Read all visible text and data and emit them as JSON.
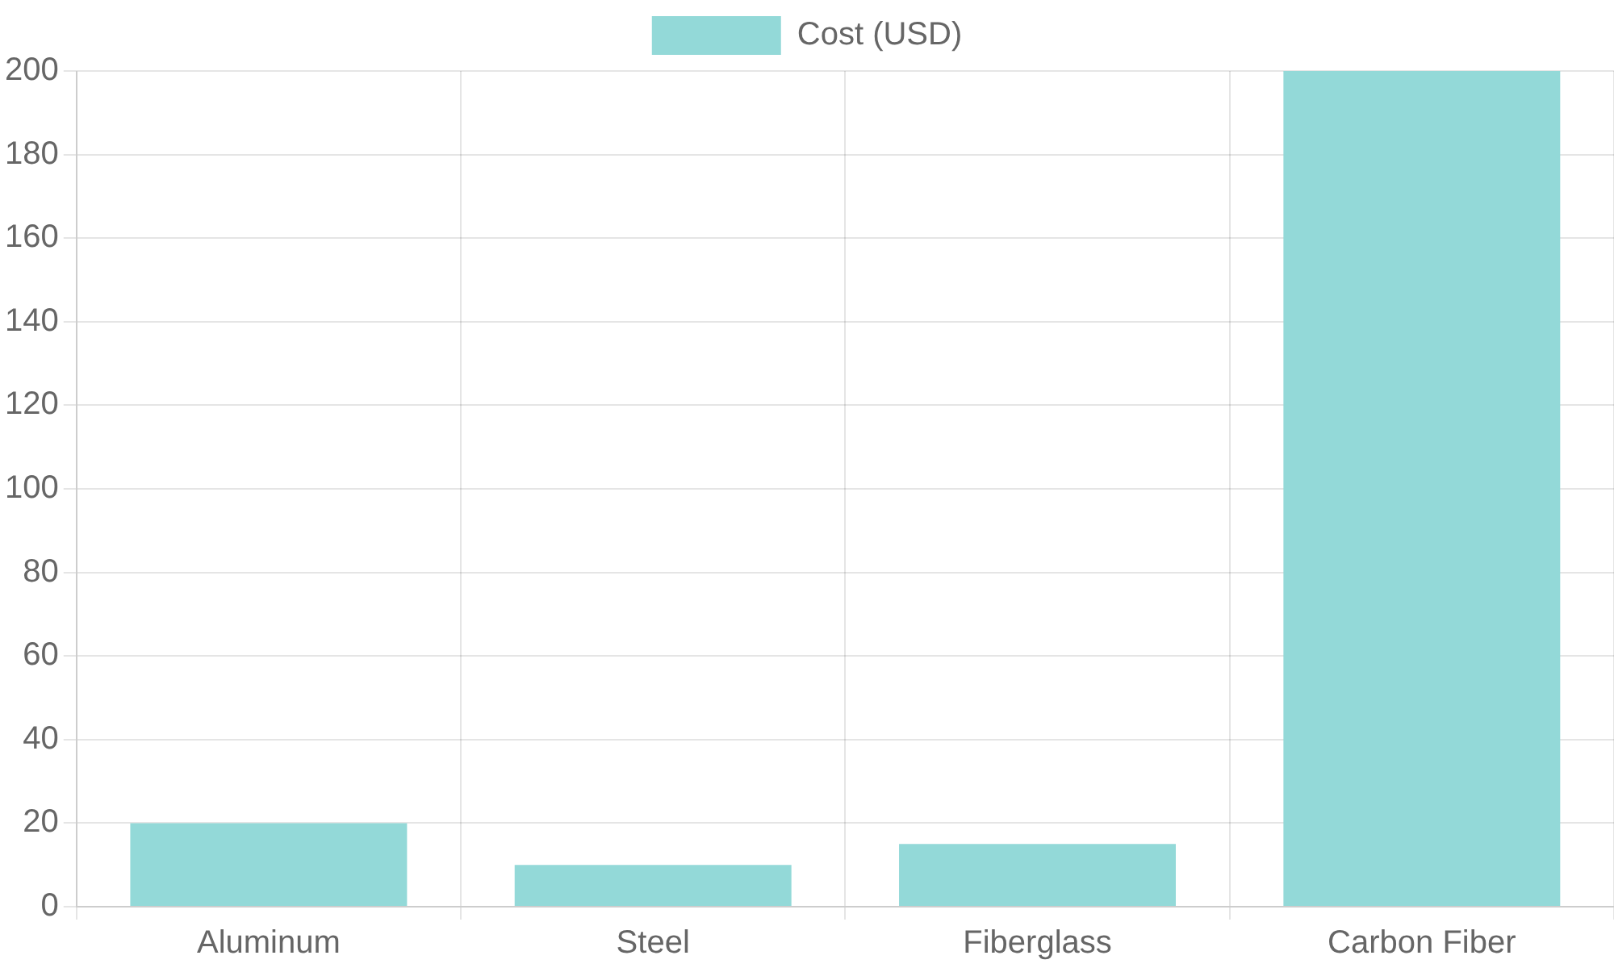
{
  "chart_data": {
    "type": "bar",
    "categories": [
      "Aluminum",
      "Steel",
      "Fiberglass",
      "Carbon Fiber"
    ],
    "series": [
      {
        "name": "Cost (USD)",
        "color": "#93d9d8",
        "values": [
          20,
          10,
          15,
          200
        ]
      }
    ],
    "ylim": [
      0,
      200
    ],
    "yticks": [
      0,
      20,
      40,
      60,
      80,
      100,
      120,
      140,
      160,
      180,
      200
    ],
    "grid": true,
    "legend": "top"
  }
}
